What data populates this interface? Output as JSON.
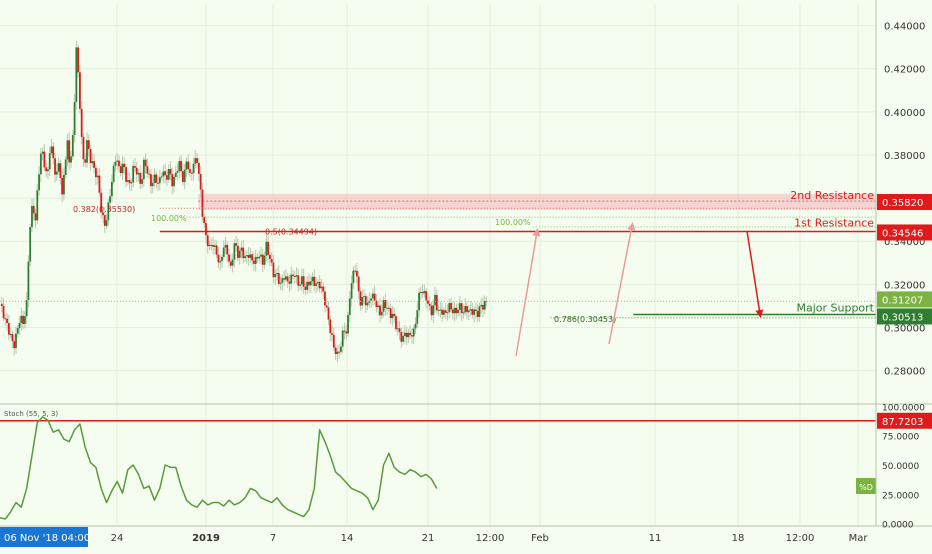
{
  "chart_data": [
    {
      "type": "candlestick",
      "title": "",
      "ylim": [
        0.265,
        0.45
      ],
      "yticks": [
        0.28,
        0.3,
        0.32,
        0.34,
        0.36,
        0.38,
        0.4,
        0.42,
        0.44
      ],
      "ytick_labels": [
        "0.28000",
        "0.30000",
        "0.32000",
        "0.34000",
        "0.36000",
        "0.38000",
        "0.40000",
        "0.42000",
        "0.44000"
      ],
      "xtick_labels": [
        "24",
        "2019",
        "7",
        "14",
        "21",
        "12:00",
        "Feb",
        "11",
        "18",
        "12:00",
        "Mar"
      ],
      "x_first_label": "06 Nov '18  04:00",
      "current_price": "0.31207",
      "price_path": [
        [
          0.0,
          0.311
        ],
        [
          0.6,
          0.306
        ],
        [
          1.2,
          0.301
        ],
        [
          1.8,
          0.296
        ],
        [
          2.3,
          0.291
        ],
        [
          2.8,
          0.297
        ],
        [
          3.4,
          0.305
        ],
        [
          3.9,
          0.302
        ],
        [
          4.5,
          0.311
        ],
        [
          5.0,
          0.345
        ],
        [
          5.5,
          0.357
        ],
        [
          6.0,
          0.35
        ],
        [
          6.5,
          0.37
        ],
        [
          7.0,
          0.383
        ],
        [
          7.5,
          0.376
        ],
        [
          8.0,
          0.369
        ],
        [
          8.5,
          0.386
        ],
        [
          9.0,
          0.378
        ],
        [
          9.5,
          0.369
        ],
        [
          10.0,
          0.378
        ],
        [
          10.5,
          0.36
        ],
        [
          10.9,
          0.375
        ],
        [
          11.4,
          0.385
        ],
        [
          11.8,
          0.375
        ],
        [
          12.4,
          0.39
        ],
        [
          12.9,
          0.43
        ],
        [
          13.4,
          0.408
        ],
        [
          13.8,
          0.388
        ],
        [
          14.2,
          0.373
        ],
        [
          14.7,
          0.386
        ],
        [
          15.3,
          0.378
        ],
        [
          16.0,
          0.373
        ],
        [
          16.6,
          0.368
        ],
        [
          17.2,
          0.352
        ],
        [
          17.8,
          0.347
        ],
        [
          18.4,
          0.358
        ],
        [
          19.0,
          0.37
        ],
        [
          19.6,
          0.38
        ],
        [
          20.2,
          0.372
        ],
        [
          20.8,
          0.376
        ],
        [
          21.4,
          0.368
        ],
        [
          22.0,
          0.366
        ],
        [
          22.6,
          0.375
        ],
        [
          23.2,
          0.372
        ],
        [
          23.8,
          0.366
        ],
        [
          24.4,
          0.378
        ],
        [
          25.0,
          0.371
        ],
        [
          25.6,
          0.366
        ],
        [
          26.2,
          0.37
        ],
        [
          26.8,
          0.366
        ],
        [
          27.4,
          0.373
        ],
        [
          28.0,
          0.369
        ],
        [
          28.6,
          0.373
        ],
        [
          29.2,
          0.366
        ],
        [
          29.8,
          0.373
        ],
        [
          30.4,
          0.376
        ],
        [
          31.0,
          0.367
        ],
        [
          31.5,
          0.378
        ],
        [
          32.1,
          0.37
        ],
        [
          32.7,
          0.376
        ],
        [
          33.3,
          0.378
        ],
        [
          33.8,
          0.366
        ],
        [
          34.2,
          0.353
        ],
        [
          34.8,
          0.342
        ],
        [
          35.4,
          0.337
        ],
        [
          36.0,
          0.339
        ],
        [
          36.6,
          0.334
        ],
        [
          37.2,
          0.329
        ],
        [
          37.8,
          0.338
        ],
        [
          38.4,
          0.335
        ],
        [
          39.0,
          0.327
        ],
        [
          39.6,
          0.339
        ],
        [
          40.2,
          0.334
        ],
        [
          40.8,
          0.336
        ],
        [
          41.4,
          0.332
        ],
        [
          42.0,
          0.334
        ],
        [
          42.6,
          0.331
        ],
        [
          43.2,
          0.331
        ],
        [
          43.8,
          0.334
        ],
        [
          44.4,
          0.33
        ],
        [
          45.0,
          0.338
        ],
        [
          45.6,
          0.332
        ],
        [
          46.2,
          0.325
        ],
        [
          46.8,
          0.324
        ],
        [
          47.4,
          0.32
        ],
        [
          48.0,
          0.324
        ],
        [
          48.6,
          0.321
        ],
        [
          49.2,
          0.323
        ],
        [
          49.8,
          0.325
        ],
        [
          50.4,
          0.32
        ],
        [
          51.0,
          0.322
        ],
        [
          51.6,
          0.318
        ],
        [
          52.2,
          0.321
        ],
        [
          52.8,
          0.322
        ],
        [
          53.4,
          0.32
        ],
        [
          54.0,
          0.32
        ],
        [
          54.6,
          0.316
        ],
        [
          55.2,
          0.308
        ],
        [
          55.8,
          0.299
        ],
        [
          56.4,
          0.291
        ],
        [
          57.0,
          0.287
        ],
        [
          57.6,
          0.292
        ],
        [
          58.1,
          0.3
        ],
        [
          58.6,
          0.297
        ],
        [
          59.1,
          0.315
        ],
        [
          59.6,
          0.324
        ],
        [
          60.1,
          0.329
        ],
        [
          60.5,
          0.317
        ],
        [
          60.9,
          0.312
        ],
        [
          61.5,
          0.314
        ],
        [
          62.1,
          0.31
        ],
        [
          62.7,
          0.315
        ],
        [
          63.3,
          0.313
        ],
        [
          63.8,
          0.309
        ],
        [
          64.3,
          0.306
        ],
        [
          64.8,
          0.311
        ],
        [
          65.3,
          0.31
        ],
        [
          65.9,
          0.306
        ],
        [
          66.4,
          0.306
        ],
        [
          67.0,
          0.3
        ],
        [
          67.5,
          0.297
        ],
        [
          68.0,
          0.294
        ],
        [
          68.5,
          0.298
        ],
        [
          69.0,
          0.296
        ],
        [
          69.5,
          0.297
        ],
        [
          70.0,
          0.298
        ],
        [
          70.5,
          0.309
        ],
        [
          71.0,
          0.318
        ],
        [
          71.5,
          0.316
        ],
        [
          72.0,
          0.314
        ],
        [
          72.5,
          0.309
        ],
        [
          73.0,
          0.307
        ],
        [
          73.5,
          0.314
        ],
        [
          74.0,
          0.307
        ],
        [
          74.6,
          0.308
        ],
        [
          75.2,
          0.306
        ],
        [
          75.8,
          0.31
        ],
        [
          76.4,
          0.308
        ],
        [
          77.0,
          0.307
        ],
        [
          77.6,
          0.31
        ],
        [
          78.2,
          0.307
        ],
        [
          78.8,
          0.309
        ],
        [
          79.4,
          0.307
        ],
        [
          80.0,
          0.308
        ],
        [
          80.6,
          0.306
        ],
        [
          81.2,
          0.31
        ],
        [
          81.7,
          0.31
        ],
        [
          82.2,
          0.312
        ]
      ],
      "levels": [
        {
          "name": "2nd Resistance",
          "value": "0.35820",
          "color": "#e01a1a"
        },
        {
          "name": "1st Resistance",
          "value": "0.34546",
          "color": "#e01a1a"
        },
        {
          "name": "Major Support",
          "value": "0.30513",
          "color": "#2e7d32"
        }
      ],
      "resistance_zone": [
        0.3545,
        0.362
      ],
      "fib_labels": [
        "0.382(0.35530)",
        "100.00%",
        "0.5(0.34494)",
        "100.00%",
        "0.786(0.30453)"
      ]
    },
    {
      "type": "line",
      "indicator": "Stoch (55, 5, 3)",
      "ylim": [
        -2,
        102
      ],
      "yticks": [
        0,
        25,
        50,
        75,
        100
      ],
      "ytick_labels": [
        "0.0000",
        "25.0000",
        "50.0000",
        "75.0000",
        "100.0000"
      ],
      "level": "87.7203",
      "legend": "%D",
      "series": [
        {
          "name": "%D",
          "x": [
            0,
            1,
            2,
            3,
            4,
            5,
            6,
            7,
            8,
            9,
            10,
            11,
            12,
            13,
            14,
            15,
            16,
            17,
            18,
            19,
            20,
            21,
            22,
            23,
            24,
            25,
            26,
            27,
            28,
            29,
            30,
            31,
            32,
            33,
            34,
            35,
            36,
            37,
            38,
            39,
            40,
            41,
            42,
            43,
            44,
            45,
            46,
            47,
            48,
            49,
            50,
            51,
            52,
            53,
            54,
            55,
            56,
            57,
            58,
            59,
            60,
            61,
            62,
            63,
            64,
            65,
            66,
            67,
            68,
            69,
            70,
            71,
            72,
            73,
            74,
            75,
            76,
            77,
            78,
            79,
            80,
            81,
            82
          ],
          "values": [
            5,
            4,
            10,
            18,
            14,
            30,
            58,
            86,
            91,
            88,
            78,
            80,
            72,
            70,
            80,
            85,
            65,
            52,
            48,
            30,
            18,
            28,
            36,
            26,
            46,
            50,
            42,
            30,
            32,
            20,
            30,
            50,
            48,
            48,
            32,
            20,
            16,
            14,
            20,
            16,
            18,
            18,
            15,
            20,
            16,
            18,
            22,
            30,
            28,
            22,
            20,
            18,
            22,
            16,
            12,
            10,
            8,
            6,
            12,
            30,
            80,
            70,
            58,
            44,
            40,
            35,
            30,
            28,
            26,
            22,
            12,
            20,
            50,
            60,
            48,
            44,
            42,
            46,
            44,
            40,
            42,
            38,
            30
          ]
        }
      ]
    }
  ],
  "colors": {
    "background": "#f4fdef",
    "bull": "#2e7d32",
    "bear": "#e01a1a",
    "indicator": "#5a9a3a",
    "axis_highlight": "#1976d2"
  }
}
